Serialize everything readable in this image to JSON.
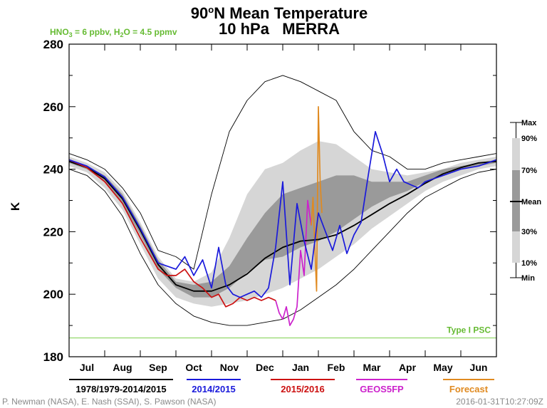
{
  "chart_data": {
    "type": "line",
    "title": "90°N Mean Temperature",
    "title_main": "90",
    "title_sup": "o",
    "title_rest": "N Mean Temperature",
    "subtitle": "10 hPa   MERRA",
    "annotation_chem": {
      "a1": "HNO",
      "a1sub": "3",
      "a2": " = 6 ppbv, H",
      "a2sub": "2",
      "a3": "O = 4.5 ppmv"
    },
    "ylabel": "K",
    "ylim": [
      180,
      280
    ],
    "yticks": [
      "180",
      "200",
      "220",
      "240",
      "260",
      "280"
    ],
    "xlim": [
      0,
      12
    ],
    "months": [
      "Jul",
      "Aug",
      "Sep",
      "Oct",
      "Nov",
      "Dec",
      "Jan",
      "Feb",
      "Mar",
      "Apr",
      "May",
      "Jun"
    ],
    "psc_label": "Type I PSC",
    "psc_value": 186,
    "grid": false,
    "legend_position": "bottom",
    "percentile_legend_position": "right",
    "percentile_legend": [
      "Max",
      "90%",
      "70%",
      "Mean",
      "30%",
      "10%",
      "Min"
    ],
    "x": [
      0,
      0.5,
      1,
      1.5,
      2,
      2.5,
      3,
      3.5,
      4,
      4.5,
      5,
      5.5,
      6,
      6.5,
      7,
      7.5,
      8,
      8.5,
      9,
      9.5,
      10,
      10.5,
      11,
      11.5,
      12
    ],
    "bands": {
      "max": [
        245,
        243,
        240,
        234,
        226,
        214,
        212,
        208,
        232,
        252,
        262,
        268,
        270,
        268,
        265,
        262,
        252,
        246,
        244,
        240,
        240,
        242,
        243,
        244,
        245
      ],
      "p90": [
        244,
        242,
        239,
        233,
        223,
        212,
        205,
        204,
        207,
        218,
        232,
        240,
        242,
        246,
        249,
        248,
        244,
        240,
        239,
        238,
        239,
        240,
        242,
        243,
        244
      ],
      "p70": [
        243,
        241,
        238,
        232,
        222,
        211,
        204,
        203,
        204,
        209,
        218,
        226,
        232,
        234,
        236,
        238,
        238,
        236,
        236,
        236,
        238,
        240,
        241,
        242,
        243
      ],
      "p30": [
        242,
        240,
        236,
        229,
        219,
        208,
        202,
        199,
        199,
        202,
        207,
        211,
        212,
        215,
        217,
        220,
        224,
        228,
        231,
        233,
        236,
        238,
        240,
        241,
        242
      ],
      "p10": [
        241,
        239,
        234,
        227,
        216,
        205,
        199,
        197,
        196,
        197,
        198,
        200,
        202,
        205,
        208,
        212,
        216,
        221,
        225,
        229,
        233,
        236,
        238,
        240,
        241
      ],
      "min": [
        240,
        238,
        233,
        225,
        213,
        203,
        197,
        193,
        191,
        190,
        190,
        191,
        192,
        195,
        199,
        203,
        208,
        214,
        220,
        226,
        231,
        234,
        237,
        239,
        240
      ]
    },
    "series": [
      {
        "name": "1978/1979-2014/2015",
        "color": "#000000",
        "values": [
          242.5,
          240.5,
          237,
          230.5,
          220.5,
          209.5,
          203,
          201,
          201,
          203,
          206.5,
          211.5,
          215,
          217,
          217.5,
          219,
          222,
          225.5,
          229,
          232,
          235.5,
          238.5,
          240.5,
          242,
          242.5
        ]
      },
      {
        "name": "2014/2015",
        "color": "#1a1adb",
        "x": [
          0,
          0.5,
          1,
          1.5,
          2,
          2.5,
          3,
          3.25,
          3.5,
          3.75,
          4,
          4.2,
          4.4,
          4.6,
          4.8,
          5,
          5.2,
          5.4,
          5.6,
          5.8,
          6,
          6.2,
          6.4,
          6.6,
          6.8,
          7,
          7.2,
          7.4,
          7.6,
          7.8,
          8,
          8.2,
          8.4,
          8.6,
          8.8,
          9,
          9.2,
          9.4,
          9.6,
          9.8,
          10,
          10.5,
          11,
          11.5,
          12
        ],
        "values": [
          243,
          241,
          237.5,
          231,
          221,
          210,
          208,
          212,
          206,
          211,
          202,
          215,
          203,
          200,
          199,
          200,
          201,
          199,
          202,
          215,
          236,
          203,
          229,
          217,
          208,
          226,
          220,
          214,
          222,
          213,
          219,
          223,
          238,
          252,
          245,
          236,
          240,
          236,
          235,
          234,
          236,
          238,
          240,
          241,
          243
        ]
      },
      {
        "name": "2015/2016",
        "color": "#cc1111",
        "x": [
          0,
          0.5,
          1,
          1.5,
          2,
          2.5,
          2.75,
          3,
          3.25,
          3.5,
          3.75,
          4,
          4.2,
          4.4,
          4.6,
          4.8,
          5,
          5.2,
          5.4,
          5.6,
          5.8
        ],
        "values": [
          243,
          240.5,
          236,
          229,
          218,
          208,
          206,
          206,
          208,
          204,
          202,
          199,
          200,
          196,
          197,
          199,
          198,
          199,
          198,
          199,
          198
        ]
      },
      {
        "name": "GEOS5FP",
        "color": "#cc22cc",
        "x": [
          5.8,
          5.9,
          6,
          6.1,
          6.2,
          6.3,
          6.4,
          6.5,
          6.6,
          6.7,
          6.8
        ],
        "values": [
          198,
          194,
          192,
          196,
          190,
          192,
          196,
          214,
          206,
          230,
          222
        ]
      },
      {
        "name": "Forecast",
        "color": "#e08a20",
        "x": [
          6.8,
          6.85,
          6.9,
          6.95,
          7,
          7.05,
          7.1
        ],
        "values": [
          222,
          231,
          215,
          201,
          260,
          236,
          226
        ]
      }
    ]
  },
  "credits": {
    "left": "P. Newman (NASA), E. Nash (SSAI), S. Pawson (NASA)",
    "right": "2016-01-31T10:27:09Z"
  }
}
